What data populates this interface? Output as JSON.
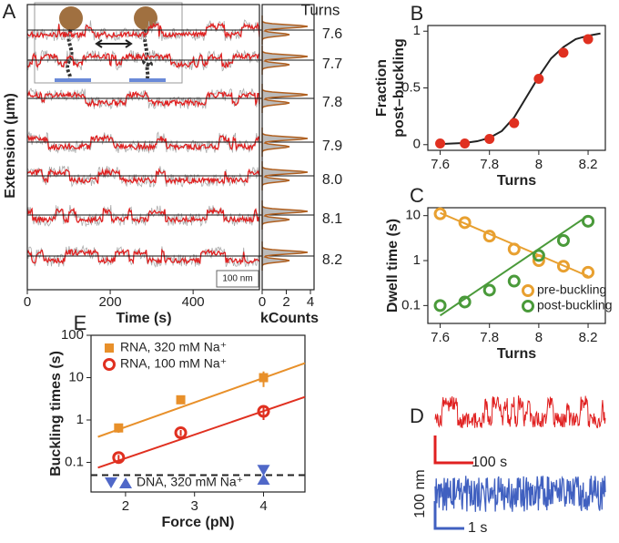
{
  "chart_data": [
    {
      "type": "trace",
      "label": "A",
      "ylabel": "Extension (μm)",
      "xlabel": "Time (s)",
      "xlim": [
        0,
        560
      ],
      "xticks": [
        0,
        200,
        400
      ],
      "scale_bar": "100 nm",
      "turns_label": "Turns",
      "turns": [
        7.6,
        7.7,
        7.8,
        7.9,
        {
          "value": 8,
          "label": "8.0"
        },
        8.1,
        8.2
      ],
      "hist_xlabel": "kCounts",
      "hist_xlim": [
        0,
        4.3
      ],
      "hist_xticks": [
        0,
        2,
        4
      ],
      "color": "#e02020"
    },
    {
      "type": "scatter",
      "label": "B",
      "xlabel": "Turns",
      "ylabel": [
        "Fraction",
        "post–buckling"
      ],
      "x": [
        7.6,
        7.7,
        7.8,
        7.9,
        8.0,
        8.1,
        8.2
      ],
      "values": [
        0.01,
        0.01,
        0.05,
        0.19,
        0.58,
        0.81,
        0.93
      ],
      "color": "#e03020",
      "fit": {
        "x": [
          7.6,
          7.65,
          7.7,
          7.75,
          7.8,
          7.85,
          7.9,
          7.95,
          8.0,
          8.05,
          8.1,
          8.15,
          8.2,
          8.25
        ],
        "values": [
          0.005,
          0.01,
          0.015,
          0.03,
          0.06,
          0.12,
          0.24,
          0.42,
          0.6,
          0.76,
          0.86,
          0.93,
          0.96,
          0.98
        ]
      },
      "xlim": [
        7.55,
        8.27
      ],
      "ylim": [
        -0.05,
        1.05
      ],
      "xticks": [
        7.6,
        7.8,
        8,
        8.2
      ],
      "yticks": [
        0,
        0.5,
        1
      ]
    },
    {
      "type": "scatter",
      "label": "C",
      "xlabel": "Turns",
      "ylabel": "Dwell time (s)",
      "yscale": "log",
      "x": [
        7.6,
        7.7,
        7.8,
        7.9,
        8.0,
        8.1,
        8.2
      ],
      "series": [
        {
          "name": "pre-buckling",
          "color": "#e8a030",
          "values": [
            11,
            7,
            3.5,
            1.8,
            1.0,
            0.75,
            0.55
          ],
          "fit": {
            "x": [
              7.6,
              8.2
            ],
            "values": [
              11.5,
              0.45
            ]
          }
        },
        {
          "name": "post-buckling",
          "color": "#4a9a3a",
          "values": [
            0.1,
            0.12,
            0.22,
            0.35,
            1.3,
            2.8,
            7.5
          ],
          "fit": {
            "x": [
              7.6,
              8.2
            ],
            "values": [
              0.06,
              10
            ]
          }
        }
      ],
      "xlim": [
        7.55,
        8.27
      ],
      "ylim": [
        0.04,
        15
      ],
      "xticks": [
        7.6,
        7.8,
        8,
        8.2
      ],
      "yticks": [
        0.1,
        1,
        10
      ],
      "legend": "lower right"
    },
    {
      "type": "trace",
      "label": "D",
      "ylabel": "100 nm",
      "bars": [
        "100 s",
        "1 s"
      ],
      "colors": [
        "#e02020",
        "#4060c0"
      ]
    },
    {
      "type": "scatter",
      "label": "E",
      "xlabel": "Force (pN)",
      "ylabel": "Buckling times (s)",
      "yscale": "log",
      "series": [
        {
          "name": "RNA, 320 mM Na⁺",
          "marker": "square",
          "color": "#e8902a",
          "x": [
            1.9,
            2.8,
            4.0
          ],
          "values": [
            0.65,
            3.0,
            10
          ],
          "errors": [
            0.15,
            0.6,
            4
          ],
          "fit": {
            "x": [
              1.6,
              4.6
            ],
            "values": [
              0.4,
              22
            ]
          }
        },
        {
          "name": "RNA, 100 mM Na⁺",
          "marker": "circle",
          "color": "#e03020",
          "x": [
            1.9,
            2.8,
            4.0
          ],
          "values": [
            0.13,
            0.5,
            1.6
          ],
          "errors": [
            0.02,
            0.08,
            0.6
          ],
          "fit": {
            "x": [
              1.6,
              4.6
            ],
            "values": [
              0.075,
              3.5
            ]
          }
        },
        {
          "name": "DNA, 320 mM Na⁺",
          "marker": "triangle",
          "color": "#5068c8",
          "x": [
            4.0,
            4.0
          ],
          "values": [
            0.065,
            0.04
          ]
        }
      ],
      "threshold": 0.05,
      "xlim": [
        1.5,
        4.6
      ],
      "ylim": [
        0.02,
        100
      ],
      "xticks": [
        2,
        3,
        4
      ],
      "yticks": [
        0.1,
        1,
        10,
        100
      ]
    }
  ]
}
